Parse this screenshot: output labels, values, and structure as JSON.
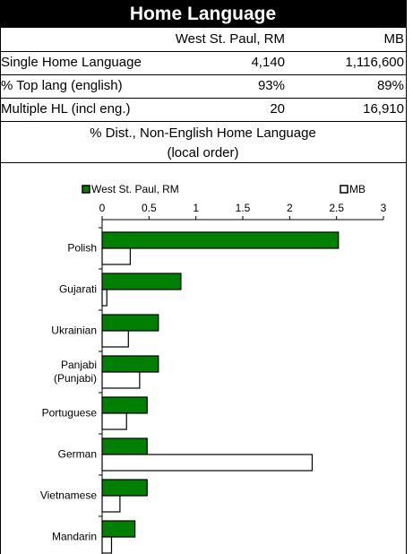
{
  "table": {
    "title": "Home Language",
    "columns": [
      "West St. Paul, RM",
      "MB"
    ],
    "rows": [
      [
        "Single Home Language",
        "4,140",
        "1,116,600"
      ],
      [
        "% Top lang (english)",
        "93%",
        "89%"
      ],
      [
        "Multiple HL (incl eng.)",
        "20",
        "16,910"
      ]
    ]
  },
  "chart_data": {
    "type": "hbar",
    "title": "% Dist., Non-English Home Language",
    "subtitle": "(local order)",
    "categories": [
      "Polish",
      "Gujarati",
      "Ukrainian",
      "Panjabi (Punjabi)",
      "Portuguese",
      "German",
      "Vietnamese",
      "Mandarin"
    ],
    "series": [
      {
        "name": "West St. Paul, RM",
        "color": "#008000",
        "values": [
          2.52,
          0.84,
          0.6,
          0.6,
          0.48,
          0.48,
          0.48,
          0.35
        ]
      },
      {
        "name": "MB",
        "color": "#ffffff",
        "values": [
          0.3,
          0.05,
          0.28,
          0.4,
          0.26,
          2.24,
          0.19,
          0.1
        ]
      }
    ],
    "xlim": [
      0,
      3
    ],
    "xticks": [
      0,
      0.5,
      1,
      1.5,
      2,
      2.5,
      3
    ],
    "legend": "top"
  }
}
